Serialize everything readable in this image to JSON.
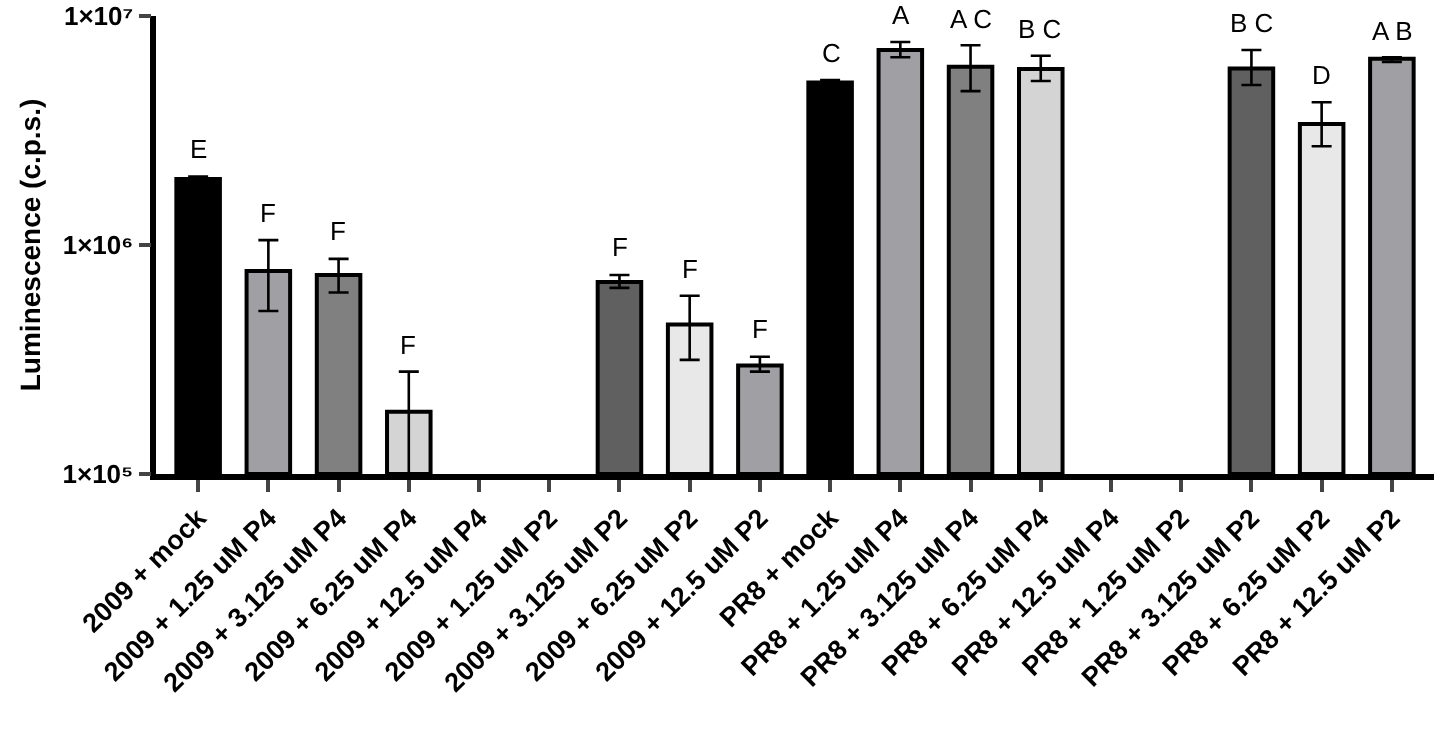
{
  "chart_data": {
    "type": "bar",
    "ylabel": "Luminescence (c.p.s.)",
    "categories": [
      "2009 + mock",
      "2009 + 1.25 uM P4",
      "2009 + 3.125 uM P4",
      "2009 + 6.25 uM P4",
      "2009 + 12.5 uM P4",
      "2009 + 1.25 uM P2",
      "2009 + 3.125 uM P2",
      "2009 + 6.25 uM P2",
      "2009 + 12.5 uM P2",
      "PR8 + mock",
      "PR8 + 1.25 uM P4",
      "PR8 + 3.125 uM P4",
      "PR8 + 6.25 uM P4",
      "PR8 + 12.5 uM P4",
      "PR8 + 1.25 uM P2",
      "PR8 + 3.125 uM P2",
      "PR8 + 6.25 uM P2",
      "PR8 + 12.5 uM P2"
    ],
    "values": [
      1940000,
      770000,
      740000,
      187000,
      null,
      null,
      690000,
      450000,
      298000,
      5130000,
      7100000,
      6000000,
      5870000,
      null,
      null,
      5900000,
      3380000,
      6500000
    ],
    "errors": [
      [
        1900000,
        1990000
      ],
      [
        515000,
        1050000
      ],
      [
        620000,
        870000
      ],
      [
        100000,
        280000
      ],
      null,
      null,
      [
        650000,
        740000
      ],
      [
        315000,
        600000
      ],
      [
        280000,
        325000
      ],
      [
        5000000,
        5250000
      ],
      [
        6600000,
        7700000
      ],
      [
        4700000,
        7450000
      ],
      [
        5200000,
        6700000
      ],
      null,
      null,
      [
        5000000,
        7100000
      ],
      [
        2700000,
        4200000
      ],
      [
        6300000,
        6600000
      ]
    ],
    "colors": [
      "#000000",
      "#a0a0a4",
      "#808080",
      "#d4d4d4",
      "#a0a0a4",
      "#606060",
      "#606060",
      "#e8e8e8",
      "#a0a0a4",
      "#000000",
      "#a0a0a4",
      "#808080",
      "#d4d4d4",
      "#a0a0a4",
      "#606060",
      "#606060",
      "#e8e8e8",
      "#a0a0a4"
    ],
    "log": "y",
    "ylim": [
      100000,
      10000000
    ],
    "yticks": [
      {
        "value": 100000,
        "label": "1×10⁵"
      },
      {
        "value": 1000000,
        "label": "1×10⁶"
      },
      {
        "value": 10000000,
        "label": "1×10⁷"
      }
    ],
    "annotations": [
      {
        "text": "E",
        "x": "2009 + mock",
        "y": 1990000
      },
      {
        "text": "F",
        "x": "2009 + 1.25 uM P4",
        "y": 1050000
      },
      {
        "text": "F",
        "x": "2009 + 3.125 uM P4",
        "y": 870000
      },
      {
        "text": "F",
        "x": "2009 + 6.25 uM P4",
        "y": 280000
      },
      {
        "text": "F",
        "x": "2009 + 3.125 uM P2",
        "y": 740000
      },
      {
        "text": "F",
        "x": "2009 + 6.25 uM P2",
        "y": 600000
      },
      {
        "text": "F",
        "x": "2009 + 12.5 uM P2",
        "y": 325000
      },
      {
        "text": "C",
        "x": "PR8 + mock",
        "y": 5250000
      },
      {
        "text": "A",
        "x": "PR8 + 1.25 uM P4",
        "y": 7700000
      },
      {
        "text": "A C",
        "x": "PR8 + 3.125 uM P4",
        "y": 7450000
      },
      {
        "text": "B C",
        "x": "PR8 + 6.25 uM P4",
        "y": 6700000
      },
      {
        "text": "B C",
        "x": "PR8 + 3.125 uM P2",
        "y": 7100000
      },
      {
        "text": "D",
        "x": "PR8 + 6.25 uM P2",
        "y": 4200000
      },
      {
        "text": "A B",
        "x": "PR8 + 12.5 uM P2",
        "y": 6600000
      }
    ]
  }
}
